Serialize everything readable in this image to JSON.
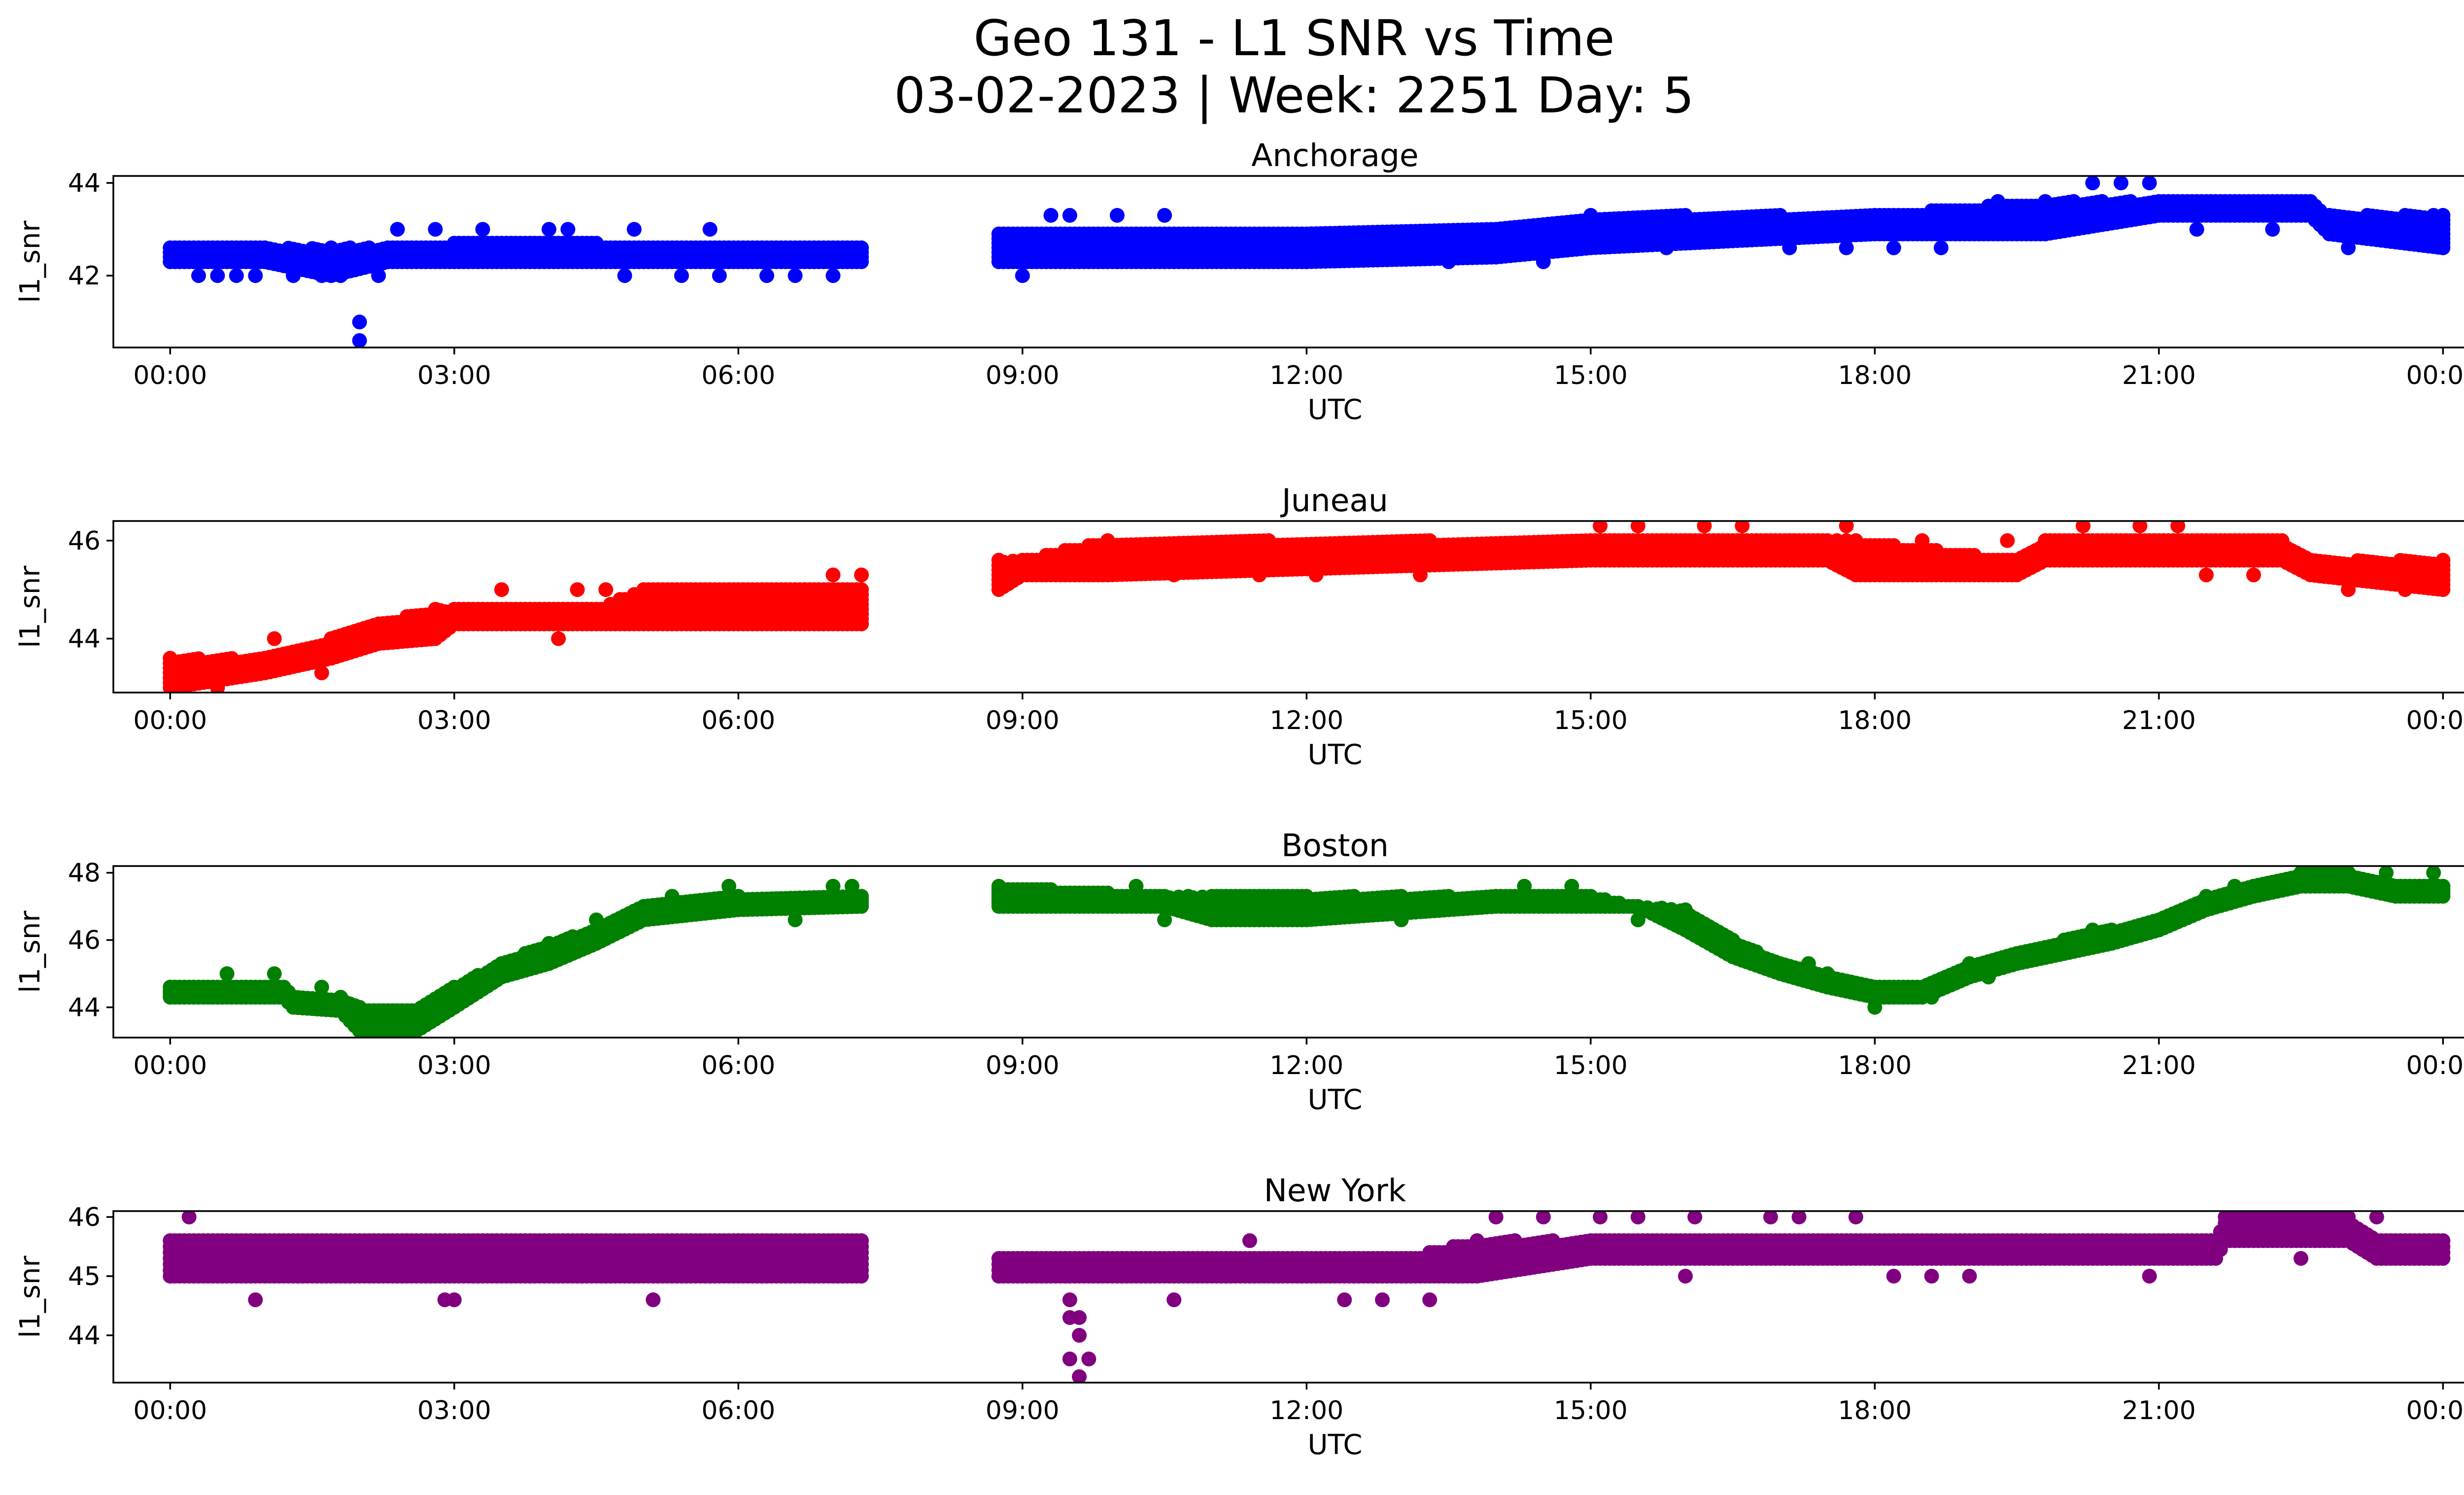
{
  "figure": {
    "title_line1": "Geo 131 - L1 SNR vs Time",
    "title_line2": "03-02-2023 | Week: 2251 Day: 5"
  },
  "chart_data": [
    {
      "type": "scatter",
      "title": "Anchorage",
      "xlabel": "UTC",
      "ylabel": "l1_snr",
      "color": "#0000ff",
      "xlim": [
        -0.6,
        25.2
      ],
      "ylim": [
        40.45,
        44.15
      ],
      "yticks": [
        42,
        44
      ],
      "xtick_labels": [
        "00:00",
        "03:00",
        "06:00",
        "09:00",
        "12:00",
        "15:00",
        "18:00",
        "21:00",
        "00:00"
      ],
      "baseline": [
        [
          0.0,
          42.3,
          42.6
        ],
        [
          1.0,
          42.3,
          42.6
        ],
        [
          1.7,
          42.0,
          42.6
        ],
        [
          2.3,
          42.3,
          42.6
        ],
        [
          3.0,
          42.3,
          42.7
        ],
        [
          4.5,
          42.3,
          42.7
        ],
        [
          7.3,
          42.3,
          42.6
        ],
        [
          8.75,
          42.3,
          42.9
        ],
        [
          12.0,
          42.3,
          42.9
        ],
        [
          14.0,
          42.4,
          43.0
        ],
        [
          15.0,
          42.6,
          43.3
        ],
        [
          18.0,
          42.9,
          43.3
        ],
        [
          19.8,
          42.9,
          43.6
        ],
        [
          21.0,
          43.3,
          43.6
        ],
        [
          22.6,
          43.3,
          43.6
        ],
        [
          22.8,
          42.9,
          43.3
        ],
        [
          24.0,
          42.6,
          43.3
        ]
      ],
      "outliers": [
        [
          0.3,
          42.0
        ],
        [
          0.5,
          42.0
        ],
        [
          0.7,
          42.0
        ],
        [
          0.9,
          42.0
        ],
        [
          1.3,
          42.0
        ],
        [
          1.6,
          42.0
        ],
        [
          1.8,
          42.0
        ],
        [
          2.0,
          41.0
        ],
        [
          2.0,
          40.6
        ],
        [
          2.2,
          42.0
        ],
        [
          2.4,
          43.0
        ],
        [
          2.8,
          43.0
        ],
        [
          3.3,
          43.0
        ],
        [
          4.0,
          43.0
        ],
        [
          4.2,
          43.0
        ],
        [
          4.9,
          43.0
        ],
        [
          4.8,
          42.0
        ],
        [
          5.7,
          43.0
        ],
        [
          5.4,
          42.0
        ],
        [
          5.8,
          42.0
        ],
        [
          6.3,
          42.0
        ],
        [
          6.6,
          42.0
        ],
        [
          7.0,
          42.0
        ],
        [
          9.0,
          42.0
        ],
        [
          9.3,
          43.3
        ],
        [
          9.5,
          43.3
        ],
        [
          10.0,
          43.3
        ],
        [
          10.5,
          43.3
        ],
        [
          10.0,
          42.3
        ],
        [
          10.8,
          42.3
        ],
        [
          12.0,
          42.3
        ],
        [
          13.5,
          42.3
        ],
        [
          14.5,
          42.3
        ],
        [
          15.8,
          42.6
        ],
        [
          17.1,
          42.6
        ],
        [
          17.7,
          42.6
        ],
        [
          18.2,
          42.6
        ],
        [
          18.7,
          42.6
        ],
        [
          19.3,
          43.6
        ],
        [
          20.3,
          44.0
        ],
        [
          20.6,
          44.0
        ],
        [
          20.9,
          44.0
        ],
        [
          21.4,
          43.0
        ],
        [
          22.2,
          43.0
        ],
        [
          23.0,
          42.6
        ],
        [
          23.9,
          43.3
        ]
      ]
    },
    {
      "type": "scatter",
      "title": "Juneau",
      "xlabel": "UTC",
      "ylabel": "l1_snr",
      "color": "#ff0000",
      "xlim": [
        -0.6,
        25.2
      ],
      "ylim": [
        42.9,
        46.4
      ],
      "yticks": [
        44,
        46
      ],
      "xtick_labels": [
        "00:00",
        "03:00",
        "06:00",
        "09:00",
        "12:00",
        "15:00",
        "18:00",
        "21:00",
        "00:00"
      ],
      "baseline": [
        [
          0.0,
          43.0,
          43.6
        ],
        [
          1.0,
          43.3,
          43.6
        ],
        [
          1.7,
          43.6,
          44.0
        ],
        [
          2.2,
          43.9,
          44.3
        ],
        [
          2.8,
          44.0,
          44.6
        ],
        [
          3.0,
          44.3,
          44.6
        ],
        [
          4.5,
          44.3,
          44.6
        ],
        [
          5.0,
          44.3,
          45.0
        ],
        [
          7.3,
          44.3,
          45.0
        ],
        [
          8.75,
          45.0,
          45.6
        ],
        [
          9.0,
          45.3,
          45.6
        ],
        [
          9.9,
          45.3,
          46.0
        ],
        [
          15.0,
          45.6,
          46.0
        ],
        [
          17.5,
          45.6,
          46.0
        ],
        [
          17.8,
          45.3,
          46.0
        ],
        [
          19.5,
          45.3,
          45.6
        ],
        [
          19.8,
          45.6,
          46.0
        ],
        [
          22.3,
          45.6,
          46.0
        ],
        [
          22.6,
          45.3,
          45.6
        ],
        [
          24.0,
          45.0,
          45.6
        ]
      ],
      "outliers": [
        [
          0.5,
          43.0
        ],
        [
          1.1,
          44.0
        ],
        [
          1.6,
          43.3
        ],
        [
          2.4,
          44.3
        ],
        [
          2.9,
          44.3
        ],
        [
          3.5,
          45.0
        ],
        [
          4.1,
          44.0
        ],
        [
          4.3,
          45.0
        ],
        [
          4.6,
          45.0
        ],
        [
          5.6,
          44.3
        ],
        [
          6.7,
          45.0
        ],
        [
          7.0,
          45.3
        ],
        [
          7.3,
          44.3
        ],
        [
          7.3,
          45.3
        ],
        [
          10.6,
          45.3
        ],
        [
          11.5,
          45.3
        ],
        [
          12.1,
          45.3
        ],
        [
          13.2,
          45.3
        ],
        [
          15.1,
          46.3
        ],
        [
          15.5,
          46.3
        ],
        [
          16.2,
          46.3
        ],
        [
          16.6,
          46.3
        ],
        [
          17.7,
          46.3
        ],
        [
          18.5,
          46.0
        ],
        [
          19.4,
          46.0
        ],
        [
          20.2,
          46.3
        ],
        [
          20.8,
          46.3
        ],
        [
          21.2,
          46.3
        ],
        [
          21.5,
          45.3
        ],
        [
          22.0,
          45.3
        ],
        [
          23.0,
          45.0
        ],
        [
          23.6,
          45.0
        ]
      ]
    },
    {
      "type": "scatter",
      "title": "Boston",
      "xlabel": "UTC",
      "ylabel": "l1_snr",
      "color": "#008000",
      "xlim": [
        -0.6,
        25.2
      ],
      "ylim": [
        43.1,
        48.2
      ],
      "yticks": [
        44,
        46,
        48
      ],
      "xtick_labels": [
        "00:00",
        "03:00",
        "06:00",
        "09:00",
        "12:00",
        "15:00",
        "18:00",
        "21:00",
        "00:00"
      ],
      "baseline": [
        [
          0.0,
          44.3,
          44.6
        ],
        [
          1.2,
          44.3,
          44.6
        ],
        [
          1.3,
          44.0,
          44.3
        ],
        [
          1.8,
          43.9,
          44.3
        ],
        [
          2.0,
          43.3,
          44.0
        ],
        [
          2.6,
          43.3,
          43.9
        ],
        [
          3.0,
          44.0,
          44.6
        ],
        [
          3.5,
          44.9,
          45.3
        ],
        [
          4.0,
          45.3,
          45.9
        ],
        [
          4.5,
          45.9,
          46.3
        ],
        [
          5.0,
          46.6,
          47.0
        ],
        [
          6.0,
          46.9,
          47.3
        ],
        [
          7.3,
          47.0,
          47.3
        ],
        [
          8.75,
          47.0,
          47.6
        ],
        [
          10.5,
          47.0,
          47.3
        ],
        [
          11.0,
          46.6,
          47.3
        ],
        [
          12.0,
          46.6,
          47.3
        ],
        [
          14.0,
          47.0,
          47.3
        ],
        [
          15.0,
          47.0,
          47.3
        ],
        [
          15.5,
          47.0,
          47.0
        ],
        [
          16.0,
          46.3,
          46.9
        ],
        [
          16.5,
          45.5,
          46.0
        ],
        [
          17.0,
          45.0,
          45.3
        ],
        [
          17.5,
          44.6,
          45.0
        ],
        [
          18.0,
          44.3,
          44.6
        ],
        [
          18.5,
          44.3,
          44.6
        ],
        [
          19.0,
          44.9,
          45.3
        ],
        [
          19.5,
          45.3,
          45.6
        ],
        [
          20.0,
          45.6,
          46.0
        ],
        [
          20.5,
          45.9,
          46.3
        ],
        [
          21.0,
          46.3,
          46.6
        ],
        [
          21.5,
          46.9,
          47.3
        ],
        [
          22.0,
          47.3,
          47.6
        ],
        [
          22.5,
          47.6,
          48.0
        ],
        [
          23.0,
          47.6,
          48.0
        ],
        [
          23.5,
          47.3,
          47.6
        ],
        [
          24.0,
          47.3,
          47.6
        ]
      ],
      "outliers": [
        [
          0.6,
          45.0
        ],
        [
          1.1,
          45.0
        ],
        [
          1.6,
          44.6
        ],
        [
          2.3,
          43.6
        ],
        [
          3.2,
          44.6
        ],
        [
          3.9,
          45.6
        ],
        [
          4.5,
          46.6
        ],
        [
          5.3,
          47.3
        ],
        [
          5.9,
          47.6
        ],
        [
          6.6,
          46.6
        ],
        [
          7.0,
          47.6
        ],
        [
          7.2,
          47.6
        ],
        [
          10.2,
          47.6
        ],
        [
          10.5,
          46.6
        ],
        [
          11.5,
          46.6
        ],
        [
          13.0,
          46.6
        ],
        [
          14.3,
          47.6
        ],
        [
          14.8,
          47.6
        ],
        [
          15.5,
          46.6
        ],
        [
          16.3,
          46.0
        ],
        [
          16.9,
          45.3
        ],
        [
          17.3,
          45.3
        ],
        [
          17.8,
          44.6
        ],
        [
          18.0,
          44.0
        ],
        [
          18.6,
          44.3
        ],
        [
          19.2,
          44.9
        ],
        [
          20.3,
          46.3
        ],
        [
          21.8,
          47.6
        ],
        [
          22.9,
          48.0
        ],
        [
          23.4,
          48.0
        ],
        [
          23.9,
          48.0
        ]
      ]
    },
    {
      "type": "scatter",
      "title": "New York",
      "xlabel": "UTC",
      "ylabel": "l1_snr",
      "color": "#800080",
      "xlim": [
        -0.6,
        25.2
      ],
      "ylim": [
        43.2,
        46.1
      ],
      "yticks": [
        44,
        45,
        46
      ],
      "xtick_labels": [
        "00:00",
        "03:00",
        "06:00",
        "09:00",
        "12:00",
        "15:00",
        "18:00",
        "21:00",
        "00:00"
      ],
      "baseline": [
        [
          0.0,
          45.0,
          45.6
        ],
        [
          3.0,
          45.0,
          45.6
        ],
        [
          7.3,
          45.0,
          45.6
        ],
        [
          8.75,
          45.0,
          45.3
        ],
        [
          10.0,
          45.0,
          45.3
        ],
        [
          13.0,
          45.0,
          45.3
        ],
        [
          13.8,
          45.0,
          45.6
        ],
        [
          15.0,
          45.3,
          45.6
        ],
        [
          19.0,
          45.3,
          45.6
        ],
        [
          20.0,
          45.3,
          45.6
        ],
        [
          21.0,
          45.3,
          45.6
        ],
        [
          21.6,
          45.3,
          45.6
        ],
        [
          21.7,
          45.6,
          46.0
        ],
        [
          23.0,
          45.6,
          46.0
        ],
        [
          23.3,
          45.3,
          45.6
        ],
        [
          24.0,
          45.3,
          45.6
        ]
      ],
      "outliers": [
        [
          0.2,
          46.0
        ],
        [
          0.9,
          44.6
        ],
        [
          2.5,
          45.6
        ],
        [
          2.9,
          44.6
        ],
        [
          3.0,
          44.6
        ],
        [
          5.1,
          44.6
        ],
        [
          5.5,
          45.6
        ],
        [
          6.0,
          45.6
        ],
        [
          9.5,
          44.6
        ],
        [
          9.5,
          44.3
        ],
        [
          9.6,
          44.0
        ],
        [
          9.5,
          43.6
        ],
        [
          9.6,
          43.3
        ],
        [
          9.7,
          43.6
        ],
        [
          9.6,
          44.3
        ],
        [
          10.6,
          44.6
        ],
        [
          11.4,
          45.6
        ],
        [
          12.4,
          44.6
        ],
        [
          12.8,
          44.6
        ],
        [
          13.3,
          44.6
        ],
        [
          14.0,
          46.0
        ],
        [
          14.5,
          46.0
        ],
        [
          15.1,
          46.0
        ],
        [
          15.5,
          46.0
        ],
        [
          16.0,
          45.0
        ],
        [
          16.1,
          46.0
        ],
        [
          16.9,
          46.0
        ],
        [
          17.2,
          46.0
        ],
        [
          17.8,
          46.0
        ],
        [
          18.2,
          45.0
        ],
        [
          18.6,
          45.0
        ],
        [
          19.0,
          45.0
        ],
        [
          20.9,
          45.0
        ],
        [
          22.5,
          45.3
        ],
        [
          23.3,
          46.0
        ]
      ]
    }
  ]
}
